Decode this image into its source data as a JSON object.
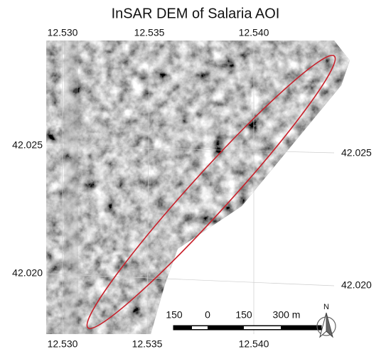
{
  "title": "InSAR DEM of Salaria AOI",
  "top_labels": [
    "12.530",
    "12.535",
    "12.540"
  ],
  "bottom_labels": [
    "12.530",
    "12.535",
    "12.540"
  ],
  "left_labels": [
    "42.025",
    "42.020"
  ],
  "right_labels": [
    "42.025",
    "42.020"
  ],
  "scale_bar": {
    "labels": [
      "150",
      "0",
      "150",
      "300 m"
    ]
  },
  "north_arrow": {
    "label": "N"
  }
}
